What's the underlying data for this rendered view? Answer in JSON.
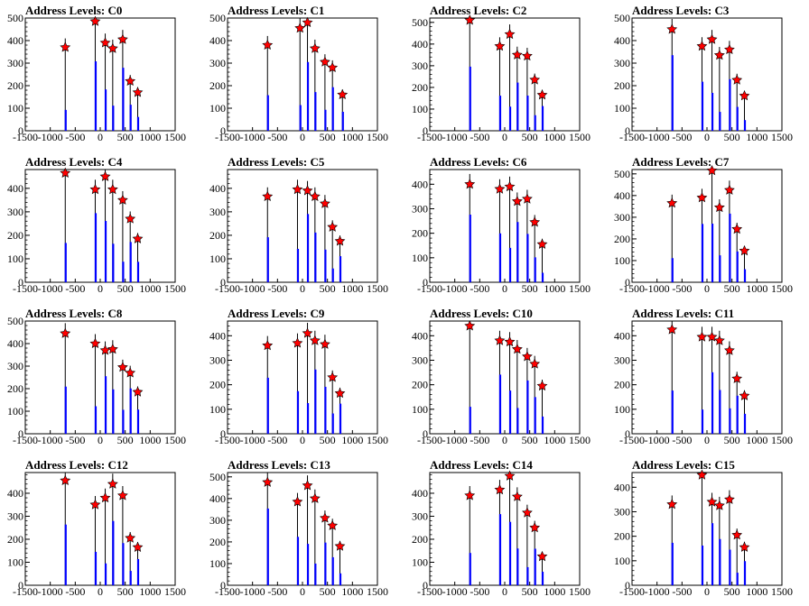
{
  "chart_data": {
    "type": "histogram-grid",
    "x_ticks": [
      -1500,
      -1000,
      -500,
      0,
      500,
      1000,
      1500
    ],
    "xlim": [
      -1500,
      1500
    ],
    "grid": false,
    "panels": [
      {
        "title": "Address Levels: C0",
        "ylim": [
          0,
          500
        ],
        "y_ticks": [
          0,
          100,
          200,
          300,
          400,
          500
        ],
        "levels": [
          -700,
          -100,
          100,
          250,
          450,
          600,
          750
        ],
        "markers": [
          [
            -700,
            370
          ],
          [
            -100,
            485
          ],
          [
            100,
            390
          ],
          [
            250,
            365
          ],
          [
            450,
            405
          ],
          [
            600,
            220
          ],
          [
            750,
            170
          ]
        ]
      },
      {
        "title": "Address Levels: C1",
        "ylim": [
          0,
          500
        ],
        "y_ticks": [
          0,
          100,
          200,
          300,
          400,
          500
        ],
        "levels": [
          -700,
          -50,
          100,
          250,
          450,
          600,
          800
        ],
        "markers": [
          [
            -700,
            380
          ],
          [
            -50,
            455
          ],
          [
            100,
            480
          ],
          [
            250,
            365
          ],
          [
            450,
            305
          ],
          [
            600,
            280
          ],
          [
            800,
            160
          ]
        ]
      },
      {
        "title": "Address Levels: C2",
        "ylim": [
          0,
          520
        ],
        "y_ticks": [
          0,
          100,
          200,
          300,
          400,
          500
        ],
        "levels": [
          -700,
          -100,
          100,
          250,
          450,
          600,
          750
        ],
        "markers": [
          [
            -700,
            510
          ],
          [
            -100,
            390
          ],
          [
            100,
            445
          ],
          [
            250,
            350
          ],
          [
            450,
            345
          ],
          [
            600,
            235
          ],
          [
            750,
            165
          ]
        ]
      },
      {
        "title": "Address Levels: C3",
        "ylim": [
          0,
          500
        ],
        "y_ticks": [
          0,
          100,
          200,
          300,
          400,
          500
        ],
        "levels": [
          -700,
          -100,
          100,
          250,
          450,
          600,
          750
        ],
        "markers": [
          [
            -700,
            450
          ],
          [
            -100,
            375
          ],
          [
            100,
            405
          ],
          [
            250,
            335
          ],
          [
            450,
            360
          ],
          [
            600,
            225
          ],
          [
            750,
            155
          ]
        ]
      },
      {
        "title": "Address Levels: C4",
        "ylim": [
          0,
          480
        ],
        "y_ticks": [
          0,
          100,
          200,
          300,
          400
        ],
        "levels": [
          -700,
          -100,
          100,
          250,
          450,
          600,
          750
        ],
        "markers": [
          [
            -700,
            465
          ],
          [
            -100,
            395
          ],
          [
            100,
            450
          ],
          [
            250,
            395
          ],
          [
            450,
            350
          ],
          [
            600,
            270
          ],
          [
            750,
            185
          ]
        ]
      },
      {
        "title": "Address Levels: C5",
        "ylim": [
          0,
          480
        ],
        "y_ticks": [
          0,
          100,
          200,
          300,
          400
        ],
        "levels": [
          -700,
          -100,
          100,
          250,
          450,
          600,
          750
        ],
        "markers": [
          [
            -700,
            365
          ],
          [
            -100,
            395
          ],
          [
            100,
            390
          ],
          [
            250,
            365
          ],
          [
            450,
            335
          ],
          [
            600,
            235
          ],
          [
            750,
            175
          ]
        ]
      },
      {
        "title": "Address Levels: C6",
        "ylim": [
          0,
          460
        ],
        "y_ticks": [
          0,
          100,
          200,
          300,
          400
        ],
        "levels": [
          -700,
          -100,
          100,
          250,
          450,
          600,
          750
        ],
        "markers": [
          [
            -700,
            400
          ],
          [
            -100,
            380
          ],
          [
            100,
            390
          ],
          [
            250,
            330
          ],
          [
            450,
            340
          ],
          [
            600,
            245
          ],
          [
            750,
            155
          ]
        ]
      },
      {
        "title": "Address Levels: C7",
        "ylim": [
          0,
          520
        ],
        "y_ticks": [
          0,
          100,
          200,
          300,
          400,
          500
        ],
        "levels": [
          -700,
          -100,
          100,
          250,
          450,
          600,
          750
        ],
        "markers": [
          [
            -700,
            365
          ],
          [
            -100,
            390
          ],
          [
            100,
            515
          ],
          [
            250,
            345
          ],
          [
            450,
            425
          ],
          [
            600,
            245
          ],
          [
            750,
            145
          ]
        ]
      },
      {
        "title": "Address Levels: C8",
        "ylim": [
          0,
          500
        ],
        "y_ticks": [
          0,
          100,
          200,
          300,
          400,
          500
        ],
        "levels": [
          -700,
          -100,
          100,
          250,
          450,
          600,
          750
        ],
        "markers": [
          [
            -700,
            445
          ],
          [
            -100,
            400
          ],
          [
            100,
            370
          ],
          [
            250,
            375
          ],
          [
            450,
            295
          ],
          [
            600,
            270
          ],
          [
            750,
            185
          ]
        ]
      },
      {
        "title": "Address Levels: C9",
        "ylim": [
          0,
          460
        ],
        "y_ticks": [
          0,
          100,
          200,
          300,
          400
        ],
        "levels": [
          -700,
          -100,
          100,
          250,
          450,
          600,
          750
        ],
        "markers": [
          [
            -700,
            360
          ],
          [
            -100,
            370
          ],
          [
            100,
            410
          ],
          [
            250,
            380
          ],
          [
            450,
            365
          ],
          [
            600,
            230
          ],
          [
            750,
            165
          ]
        ]
      },
      {
        "title": "Address Levels: C10",
        "ylim": [
          0,
          460
        ],
        "y_ticks": [
          0,
          100,
          200,
          300,
          400
        ],
        "levels": [
          -700,
          -100,
          100,
          250,
          450,
          600,
          750
        ],
        "markers": [
          [
            -700,
            440
          ],
          [
            -100,
            380
          ],
          [
            100,
            375
          ],
          [
            250,
            345
          ],
          [
            450,
            315
          ],
          [
            600,
            285
          ],
          [
            750,
            195
          ]
        ]
      },
      {
        "title": "Address Levels: C11",
        "ylim": [
          0,
          460
        ],
        "y_ticks": [
          0,
          100,
          200,
          300,
          400
        ],
        "levels": [
          -700,
          -100,
          100,
          250,
          450,
          600,
          750
        ],
        "markers": [
          [
            -700,
            425
          ],
          [
            -100,
            395
          ],
          [
            100,
            395
          ],
          [
            250,
            380
          ],
          [
            450,
            340
          ],
          [
            600,
            225
          ],
          [
            750,
            155
          ]
        ]
      },
      {
        "title": "Address Levels: C12",
        "ylim": [
          0,
          490
        ],
        "y_ticks": [
          0,
          100,
          200,
          300,
          400
        ],
        "levels": [
          -700,
          -100,
          100,
          250,
          450,
          600,
          750
        ],
        "markers": [
          [
            -700,
            455
          ],
          [
            -100,
            350
          ],
          [
            100,
            380
          ],
          [
            250,
            440
          ],
          [
            450,
            390
          ],
          [
            600,
            205
          ],
          [
            750,
            165
          ]
        ]
      },
      {
        "title": "Address Levels: C13",
        "ylim": [
          0,
          520
        ],
        "y_ticks": [
          0,
          100,
          200,
          300,
          400,
          500
        ],
        "levels": [
          -700,
          -100,
          100,
          250,
          450,
          600,
          750
        ],
        "markers": [
          [
            -700,
            475
          ],
          [
            -100,
            385
          ],
          [
            100,
            460
          ],
          [
            250,
            400
          ],
          [
            450,
            310
          ],
          [
            600,
            275
          ],
          [
            750,
            180
          ]
        ]
      },
      {
        "title": "Address Levels: C14",
        "ylim": [
          0,
          490
        ],
        "y_ticks": [
          0,
          100,
          200,
          300,
          400
        ],
        "levels": [
          -700,
          -100,
          100,
          250,
          450,
          600,
          750
        ],
        "markers": [
          [
            -700,
            390
          ],
          [
            -100,
            415
          ],
          [
            100,
            475
          ],
          [
            250,
            385
          ],
          [
            450,
            315
          ],
          [
            600,
            250
          ],
          [
            750,
            125
          ]
        ]
      },
      {
        "title": "Address Levels: C15",
        "ylim": [
          0,
          460
        ],
        "y_ticks": [
          0,
          100,
          200,
          300,
          400
        ],
        "levels": [
          -700,
          -100,
          100,
          250,
          450,
          600,
          750
        ],
        "markers": [
          [
            -700,
            330
          ],
          [
            -100,
            450
          ],
          [
            100,
            340
          ],
          [
            250,
            325
          ],
          [
            450,
            350
          ],
          [
            600,
            205
          ],
          [
            750,
            155
          ]
        ]
      }
    ]
  }
}
